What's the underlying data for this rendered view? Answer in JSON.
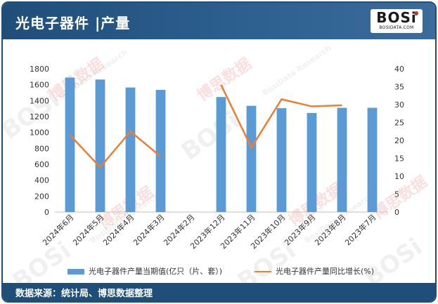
{
  "header": {
    "title": "光电子器件 ",
    "separator": "|",
    "subtitle": "产量"
  },
  "logo": {
    "main": "BOSi",
    "sub": "BOSIDATA.COM"
  },
  "watermark": {
    "brand": "BOSi",
    "cn": "博思数据",
    "en": "BosiData Research"
  },
  "footer": {
    "source": "数据来源：统计局、博思数据整理"
  },
  "colors": {
    "header": "#1f4e79",
    "bar": "#5b9bd5",
    "line": "#ed7d31"
  },
  "chart_data": {
    "type": "bar",
    "categories": [
      "2024年6月",
      "2024年5月",
      "2024年4月",
      "2024年3月",
      "2024年2月",
      "2023年12月",
      "2023年11月",
      "2023年10月",
      "2023年9月",
      "2023年8月",
      "2023年7月"
    ],
    "series": [
      {
        "name": "光电子器件产量当期值(亿只（片、套）)",
        "type": "bar",
        "axis": "left",
        "values": [
          1690,
          1665,
          1565,
          1535,
          null,
          1445,
          1335,
          1305,
          1245,
          1310,
          1310
        ]
      },
      {
        "name": "光电子器件产量同比增长(%)",
        "type": "line",
        "axis": "right",
        "values": [
          21.5,
          12.5,
          22.5,
          15.5,
          null,
          35.5,
          18.0,
          31.5,
          29.5,
          29.8,
          null
        ]
      }
    ],
    "ylim_left": [
      0,
      1800
    ],
    "yticks_left": [
      0,
      200,
      400,
      600,
      800,
      1000,
      1200,
      1400,
      1600,
      1800
    ],
    "ylim_right": [
      0,
      40
    ],
    "yticks_right": [
      0,
      5,
      10,
      15,
      20,
      25,
      30,
      35,
      40
    ],
    "grid": false,
    "legend_position": "bottom"
  }
}
